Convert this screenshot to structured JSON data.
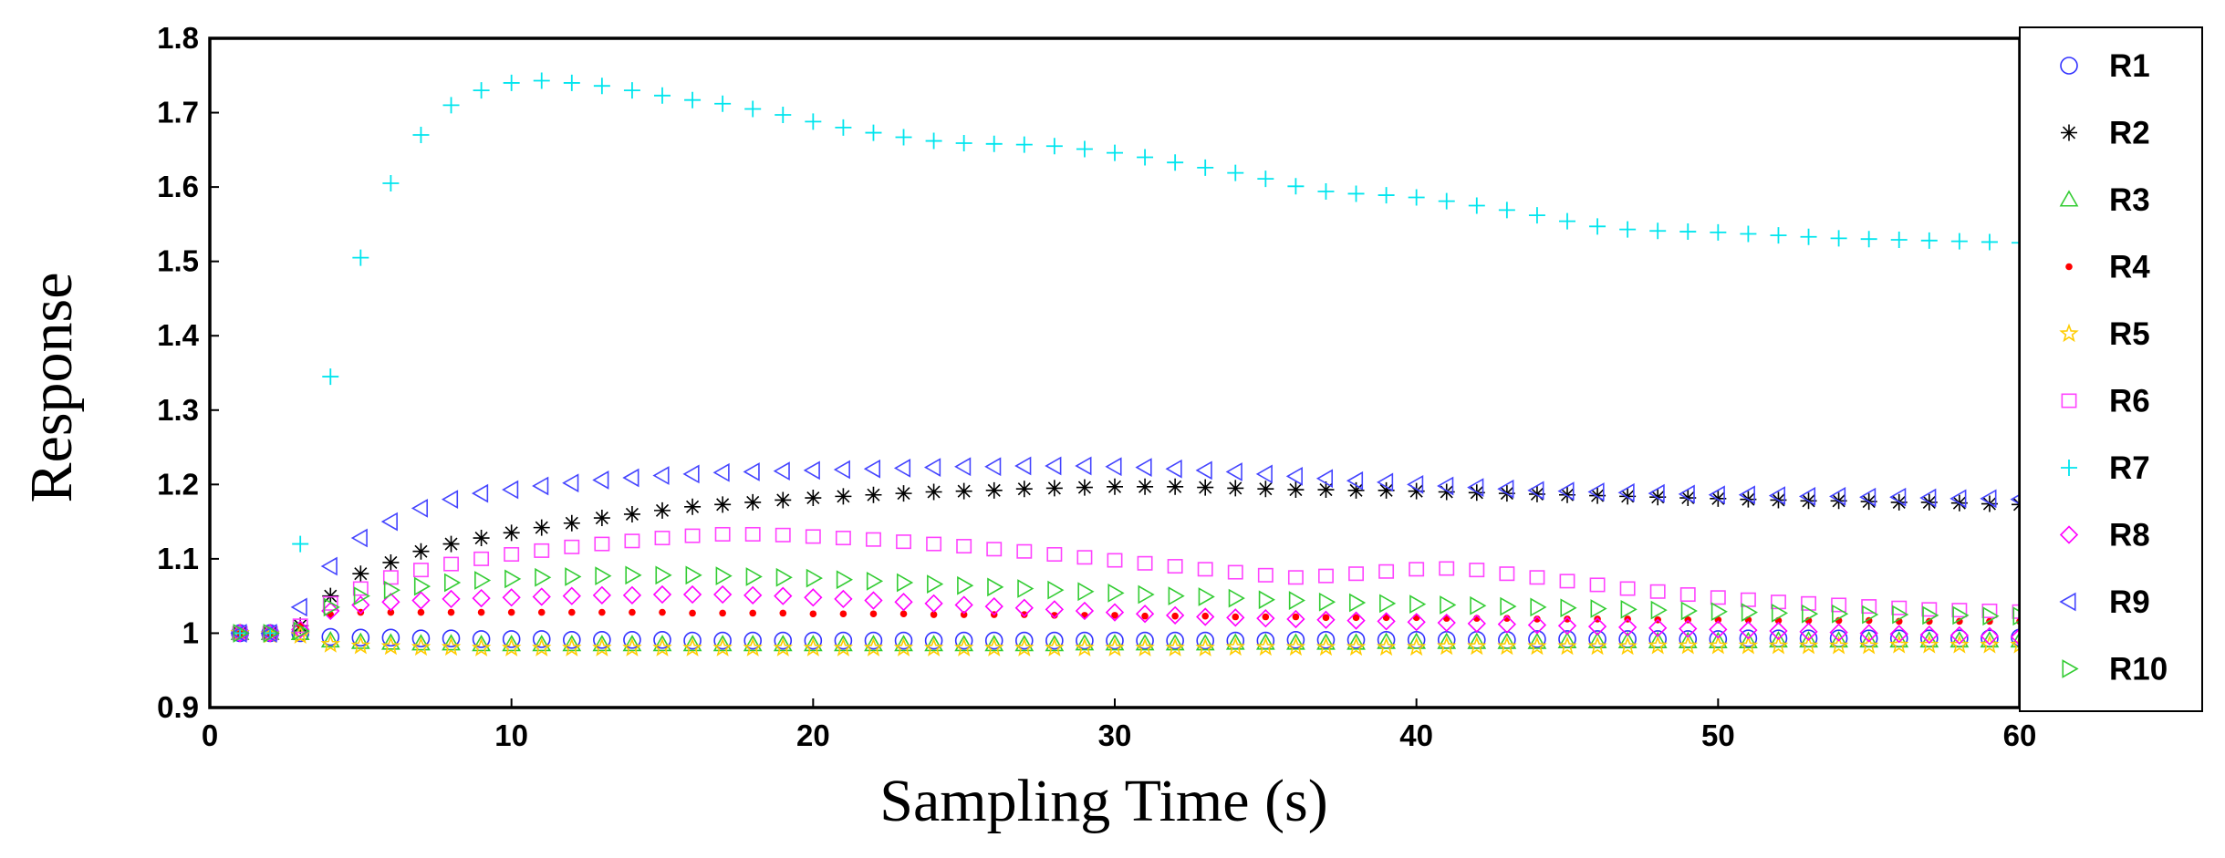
{
  "chart_data": {
    "type": "scatter",
    "xlabel": "Sampling Time (s)",
    "ylabel": "Response",
    "xlim": [
      0,
      60
    ],
    "ylim": [
      0.9,
      1.8
    ],
    "xticks": [
      "0",
      "10",
      "20",
      "30",
      "40",
      "50",
      "60"
    ],
    "yticks": [
      "0.9",
      "1",
      "1.1",
      "1.2",
      "1.3",
      "1.4",
      "1.5",
      "1.6",
      "1.7",
      "1.8"
    ],
    "grid": false,
    "legend_position": "right",
    "x": [
      1,
      2,
      3,
      4,
      5,
      6,
      7,
      8,
      9,
      10,
      11,
      12,
      13,
      14,
      15,
      16,
      17,
      18,
      19,
      20,
      21,
      22,
      23,
      24,
      25,
      26,
      27,
      28,
      29,
      30,
      31,
      32,
      33,
      34,
      35,
      36,
      37,
      38,
      39,
      40,
      41,
      42,
      43,
      44,
      45,
      46,
      47,
      48,
      49,
      50,
      51,
      52,
      53,
      54,
      55,
      56,
      57,
      58,
      59,
      60
    ],
    "series": [
      {
        "name": "R1",
        "marker": "circle",
        "color": "#3333ff",
        "values": [
          1.0,
          1.0,
          1.0,
          0.995,
          0.994,
          0.994,
          0.993,
          0.993,
          0.992,
          0.992,
          0.992,
          0.991,
          0.991,
          0.991,
          0.991,
          0.99,
          0.99,
          0.99,
          0.99,
          0.99,
          0.99,
          0.99,
          0.99,
          0.99,
          0.99,
          0.99,
          0.99,
          0.99,
          0.99,
          0.99,
          0.99,
          0.99,
          0.99,
          0.99,
          0.99,
          0.991,
          0.991,
          0.991,
          0.991,
          0.991,
          0.991,
          0.991,
          0.991,
          0.992,
          0.992,
          0.992,
          0.992,
          0.992,
          0.992,
          0.992,
          0.993,
          0.993,
          0.993,
          0.993,
          0.993,
          0.993,
          0.993,
          0.993,
          0.993,
          0.994
        ]
      },
      {
        "name": "R2",
        "marker": "star",
        "color": "#000000",
        "values": [
          1.0,
          1.0,
          1.01,
          1.05,
          1.08,
          1.095,
          1.11,
          1.12,
          1.128,
          1.135,
          1.142,
          1.148,
          1.155,
          1.16,
          1.165,
          1.17,
          1.173,
          1.176,
          1.179,
          1.182,
          1.184,
          1.186,
          1.188,
          1.19,
          1.191,
          1.192,
          1.194,
          1.195,
          1.196,
          1.197,
          1.197,
          1.197,
          1.196,
          1.195,
          1.194,
          1.193,
          1.193,
          1.192,
          1.192,
          1.191,
          1.19,
          1.189,
          1.188,
          1.187,
          1.186,
          1.185,
          1.184,
          1.183,
          1.182,
          1.181,
          1.18,
          1.179,
          1.178,
          1.178,
          1.177,
          1.176,
          1.176,
          1.175,
          1.174,
          1.173
        ]
      },
      {
        "name": "R3",
        "marker": "triangle-up",
        "color": "#33cc33",
        "values": [
          1.0,
          1.0,
          1.0,
          0.99,
          0.988,
          0.987,
          0.986,
          0.986,
          0.985,
          0.985,
          0.985,
          0.985,
          0.985,
          0.985,
          0.985,
          0.985,
          0.985,
          0.985,
          0.985,
          0.985,
          0.985,
          0.985,
          0.985,
          0.985,
          0.985,
          0.985,
          0.985,
          0.985,
          0.986,
          0.986,
          0.986,
          0.986,
          0.986,
          0.987,
          0.987,
          0.987,
          0.987,
          0.987,
          0.988,
          0.988,
          0.988,
          0.988,
          0.988,
          0.988,
          0.989,
          0.989,
          0.989,
          0.989,
          0.989,
          0.989,
          0.989,
          0.99,
          0.99,
          0.99,
          0.99,
          0.99,
          0.99,
          0.99,
          0.99,
          0.99
        ]
      },
      {
        "name": "R4",
        "marker": "dot",
        "color": "#ff0000",
        "values": [
          1.0,
          1.0,
          1.01,
          1.025,
          1.028,
          1.028,
          1.028,
          1.028,
          1.028,
          1.028,
          1.028,
          1.028,
          1.028,
          1.028,
          1.028,
          1.027,
          1.027,
          1.027,
          1.027,
          1.026,
          1.026,
          1.026,
          1.026,
          1.025,
          1.025,
          1.025,
          1.025,
          1.024,
          1.024,
          1.024,
          1.023,
          1.023,
          1.023,
          1.022,
          1.022,
          1.022,
          1.021,
          1.021,
          1.021,
          1.021,
          1.02,
          1.02,
          1.02,
          1.019,
          1.019,
          1.019,
          1.019,
          1.018,
          1.018,
          1.018,
          1.018,
          1.017,
          1.017,
          1.017,
          1.017,
          1.016,
          1.016,
          1.016,
          1.016,
          1.016
        ]
      },
      {
        "name": "R5",
        "marker": "pentagram",
        "color": "#ffcc00",
        "values": [
          1.0,
          0.998,
          0.997,
          0.985,
          0.983,
          0.982,
          0.981,
          0.981,
          0.98,
          0.98,
          0.98,
          0.98,
          0.98,
          0.98,
          0.98,
          0.98,
          0.98,
          0.98,
          0.98,
          0.98,
          0.98,
          0.98,
          0.98,
          0.98,
          0.98,
          0.98,
          0.98,
          0.98,
          0.98,
          0.98,
          0.98,
          0.98,
          0.98,
          0.981,
          0.981,
          0.981,
          0.981,
          0.981,
          0.981,
          0.981,
          0.982,
          0.982,
          0.982,
          0.982,
          0.982,
          0.982,
          0.982,
          0.983,
          0.983,
          0.983,
          0.983,
          0.983,
          0.983,
          0.983,
          0.983,
          0.984,
          0.984,
          0.984,
          0.984,
          0.984
        ]
      },
      {
        "name": "R6",
        "marker": "square",
        "color": "#ff44ff",
        "values": [
          1.0,
          1.0,
          1.01,
          1.04,
          1.06,
          1.075,
          1.085,
          1.093,
          1.1,
          1.106,
          1.111,
          1.116,
          1.12,
          1.124,
          1.128,
          1.131,
          1.133,
          1.133,
          1.132,
          1.13,
          1.128,
          1.126,
          1.123,
          1.12,
          1.117,
          1.113,
          1.11,
          1.106,
          1.102,
          1.098,
          1.094,
          1.09,
          1.086,
          1.082,
          1.078,
          1.075,
          1.077,
          1.08,
          1.083,
          1.086,
          1.087,
          1.085,
          1.08,
          1.075,
          1.07,
          1.065,
          1.06,
          1.056,
          1.052,
          1.048,
          1.045,
          1.042,
          1.04,
          1.038,
          1.036,
          1.034,
          1.032,
          1.031,
          1.03,
          1.029
        ]
      },
      {
        "name": "R7",
        "marker": "plus",
        "color": "#00e5ee",
        "values": [
          1.0,
          1.0,
          1.12,
          1.345,
          1.505,
          1.605,
          1.67,
          1.71,
          1.73,
          1.74,
          1.743,
          1.74,
          1.736,
          1.73,
          1.723,
          1.717,
          1.712,
          1.705,
          1.697,
          1.688,
          1.68,
          1.673,
          1.667,
          1.662,
          1.659,
          1.658,
          1.657,
          1.655,
          1.651,
          1.646,
          1.64,
          1.633,
          1.626,
          1.619,
          1.611,
          1.601,
          1.594,
          1.591,
          1.589,
          1.586,
          1.581,
          1.575,
          1.569,
          1.562,
          1.554,
          1.547,
          1.543,
          1.541,
          1.54,
          1.539,
          1.537,
          1.535,
          1.533,
          1.531,
          1.53,
          1.529,
          1.528,
          1.527,
          1.526,
          1.525
        ]
      },
      {
        "name": "R8",
        "marker": "diamond",
        "color": "#ff00ff",
        "values": [
          1.0,
          1.0,
          1.005,
          1.03,
          1.038,
          1.042,
          1.044,
          1.046,
          1.047,
          1.048,
          1.049,
          1.05,
          1.051,
          1.051,
          1.052,
          1.052,
          1.052,
          1.051,
          1.05,
          1.048,
          1.046,
          1.044,
          1.042,
          1.04,
          1.038,
          1.036,
          1.034,
          1.032,
          1.03,
          1.028,
          1.026,
          1.024,
          1.022,
          1.021,
          1.02,
          1.019,
          1.018,
          1.017,
          1.016,
          1.015,
          1.014,
          1.013,
          1.012,
          1.011,
          1.01,
          1.009,
          1.008,
          1.007,
          1.006,
          1.005,
          1.004,
          1.003,
          1.002,
          1.001,
          1.0,
          0.999,
          0.998,
          0.997,
          0.996,
          0.995
        ]
      },
      {
        "name": "R9",
        "marker": "triangle-left",
        "color": "#4444ff",
        "values": [
          1.0,
          1.0,
          1.035,
          1.09,
          1.128,
          1.15,
          1.168,
          1.18,
          1.188,
          1.193,
          1.198,
          1.202,
          1.206,
          1.209,
          1.212,
          1.214,
          1.216,
          1.217,
          1.218,
          1.219,
          1.22,
          1.221,
          1.222,
          1.223,
          1.224,
          1.224,
          1.225,
          1.225,
          1.225,
          1.224,
          1.223,
          1.221,
          1.219,
          1.217,
          1.214,
          1.211,
          1.208,
          1.205,
          1.203,
          1.2,
          1.198,
          1.196,
          1.194,
          1.192,
          1.191,
          1.19,
          1.189,
          1.188,
          1.187,
          1.186,
          1.186,
          1.185,
          1.184,
          1.184,
          1.183,
          1.183,
          1.182,
          1.181,
          1.181,
          1.18
        ]
      },
      {
        "name": "R10",
        "marker": "triangle-right",
        "color": "#33cc33",
        "values": [
          1.0,
          1.0,
          1.003,
          1.035,
          1.05,
          1.058,
          1.063,
          1.068,
          1.071,
          1.073,
          1.075,
          1.076,
          1.077,
          1.078,
          1.078,
          1.078,
          1.077,
          1.076,
          1.075,
          1.074,
          1.072,
          1.07,
          1.068,
          1.066,
          1.064,
          1.062,
          1.06,
          1.058,
          1.056,
          1.054,
          1.052,
          1.05,
          1.049,
          1.047,
          1.045,
          1.044,
          1.042,
          1.041,
          1.04,
          1.039,
          1.038,
          1.037,
          1.036,
          1.035,
          1.034,
          1.033,
          1.032,
          1.031,
          1.03,
          1.029,
          1.028,
          1.027,
          1.026,
          1.026,
          1.025,
          1.025,
          1.024,
          1.024,
          1.023,
          1.023
        ]
      }
    ]
  }
}
